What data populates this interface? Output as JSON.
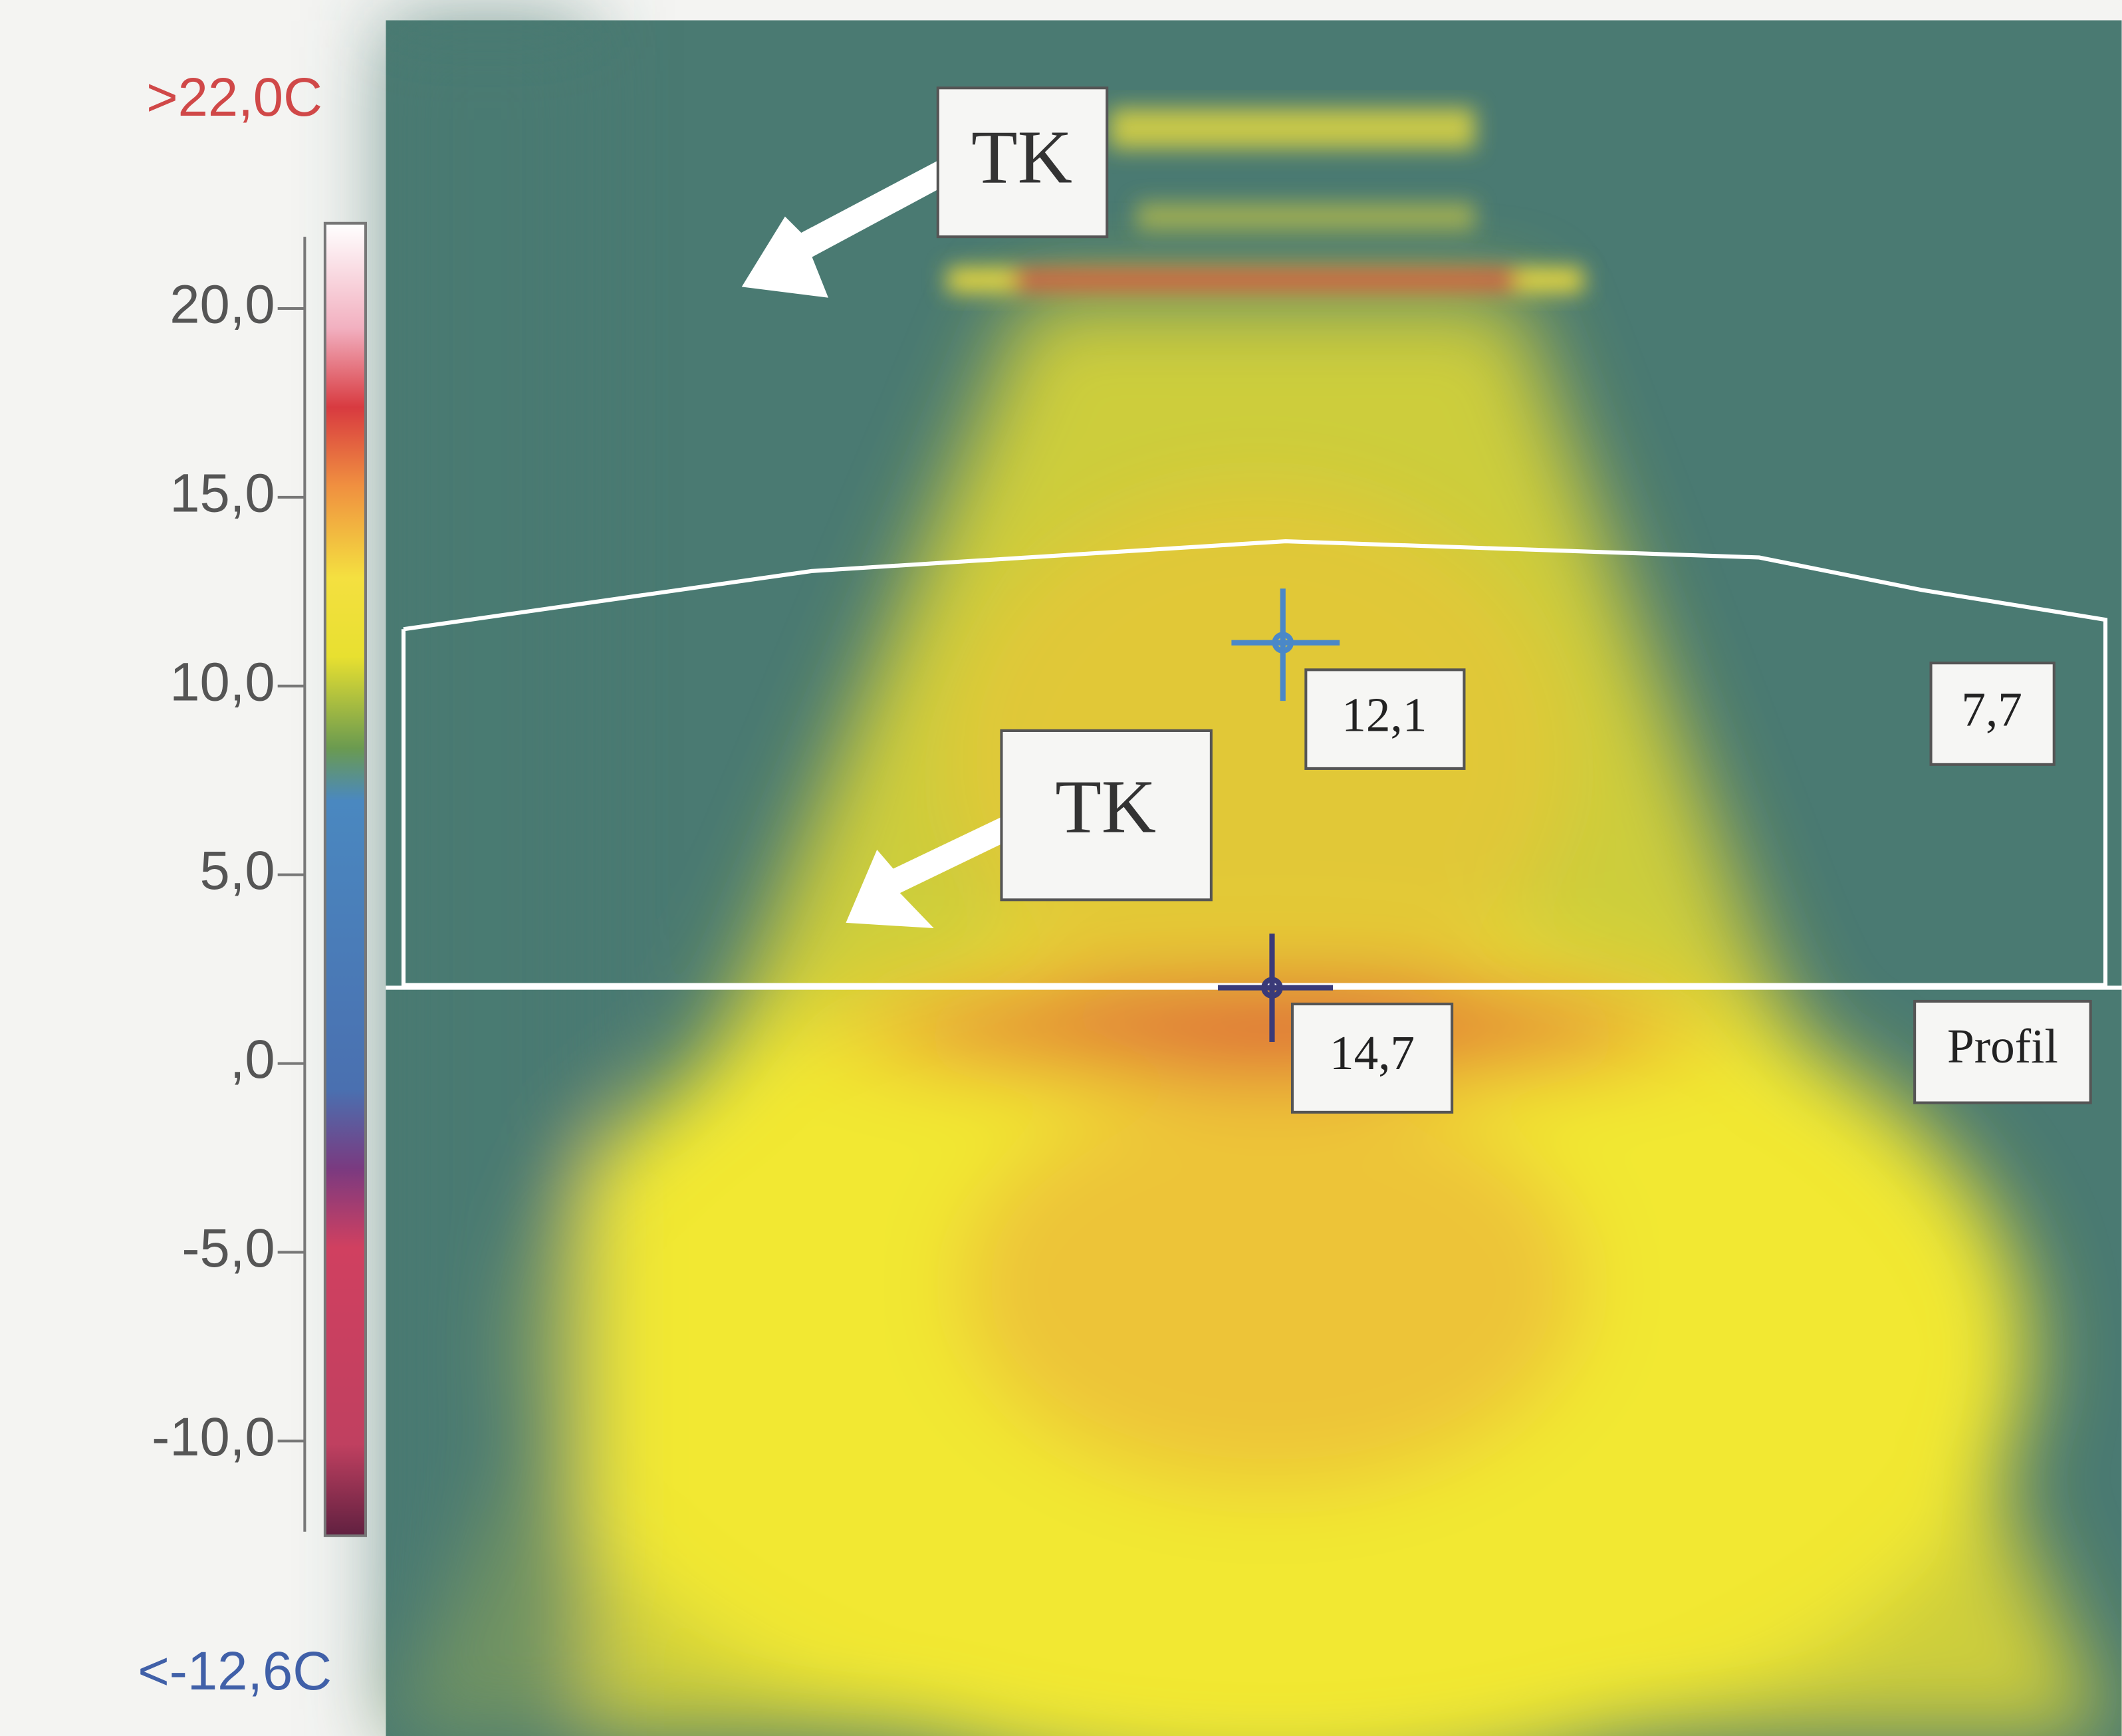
{
  "scale": {
    "max_label": ">22,0C",
    "min_label": "<-12,6C",
    "ticks": [
      "20,0",
      "15,0",
      "10,0",
      "5,0",
      ",0",
      "-5,0",
      "-10,0"
    ]
  },
  "annotations": {
    "tk_top": "TK",
    "tk_middle": "TK",
    "spot_1": "12,1",
    "spot_2": "7,7",
    "spot_3": "14,7",
    "profile": "Profil"
  }
}
